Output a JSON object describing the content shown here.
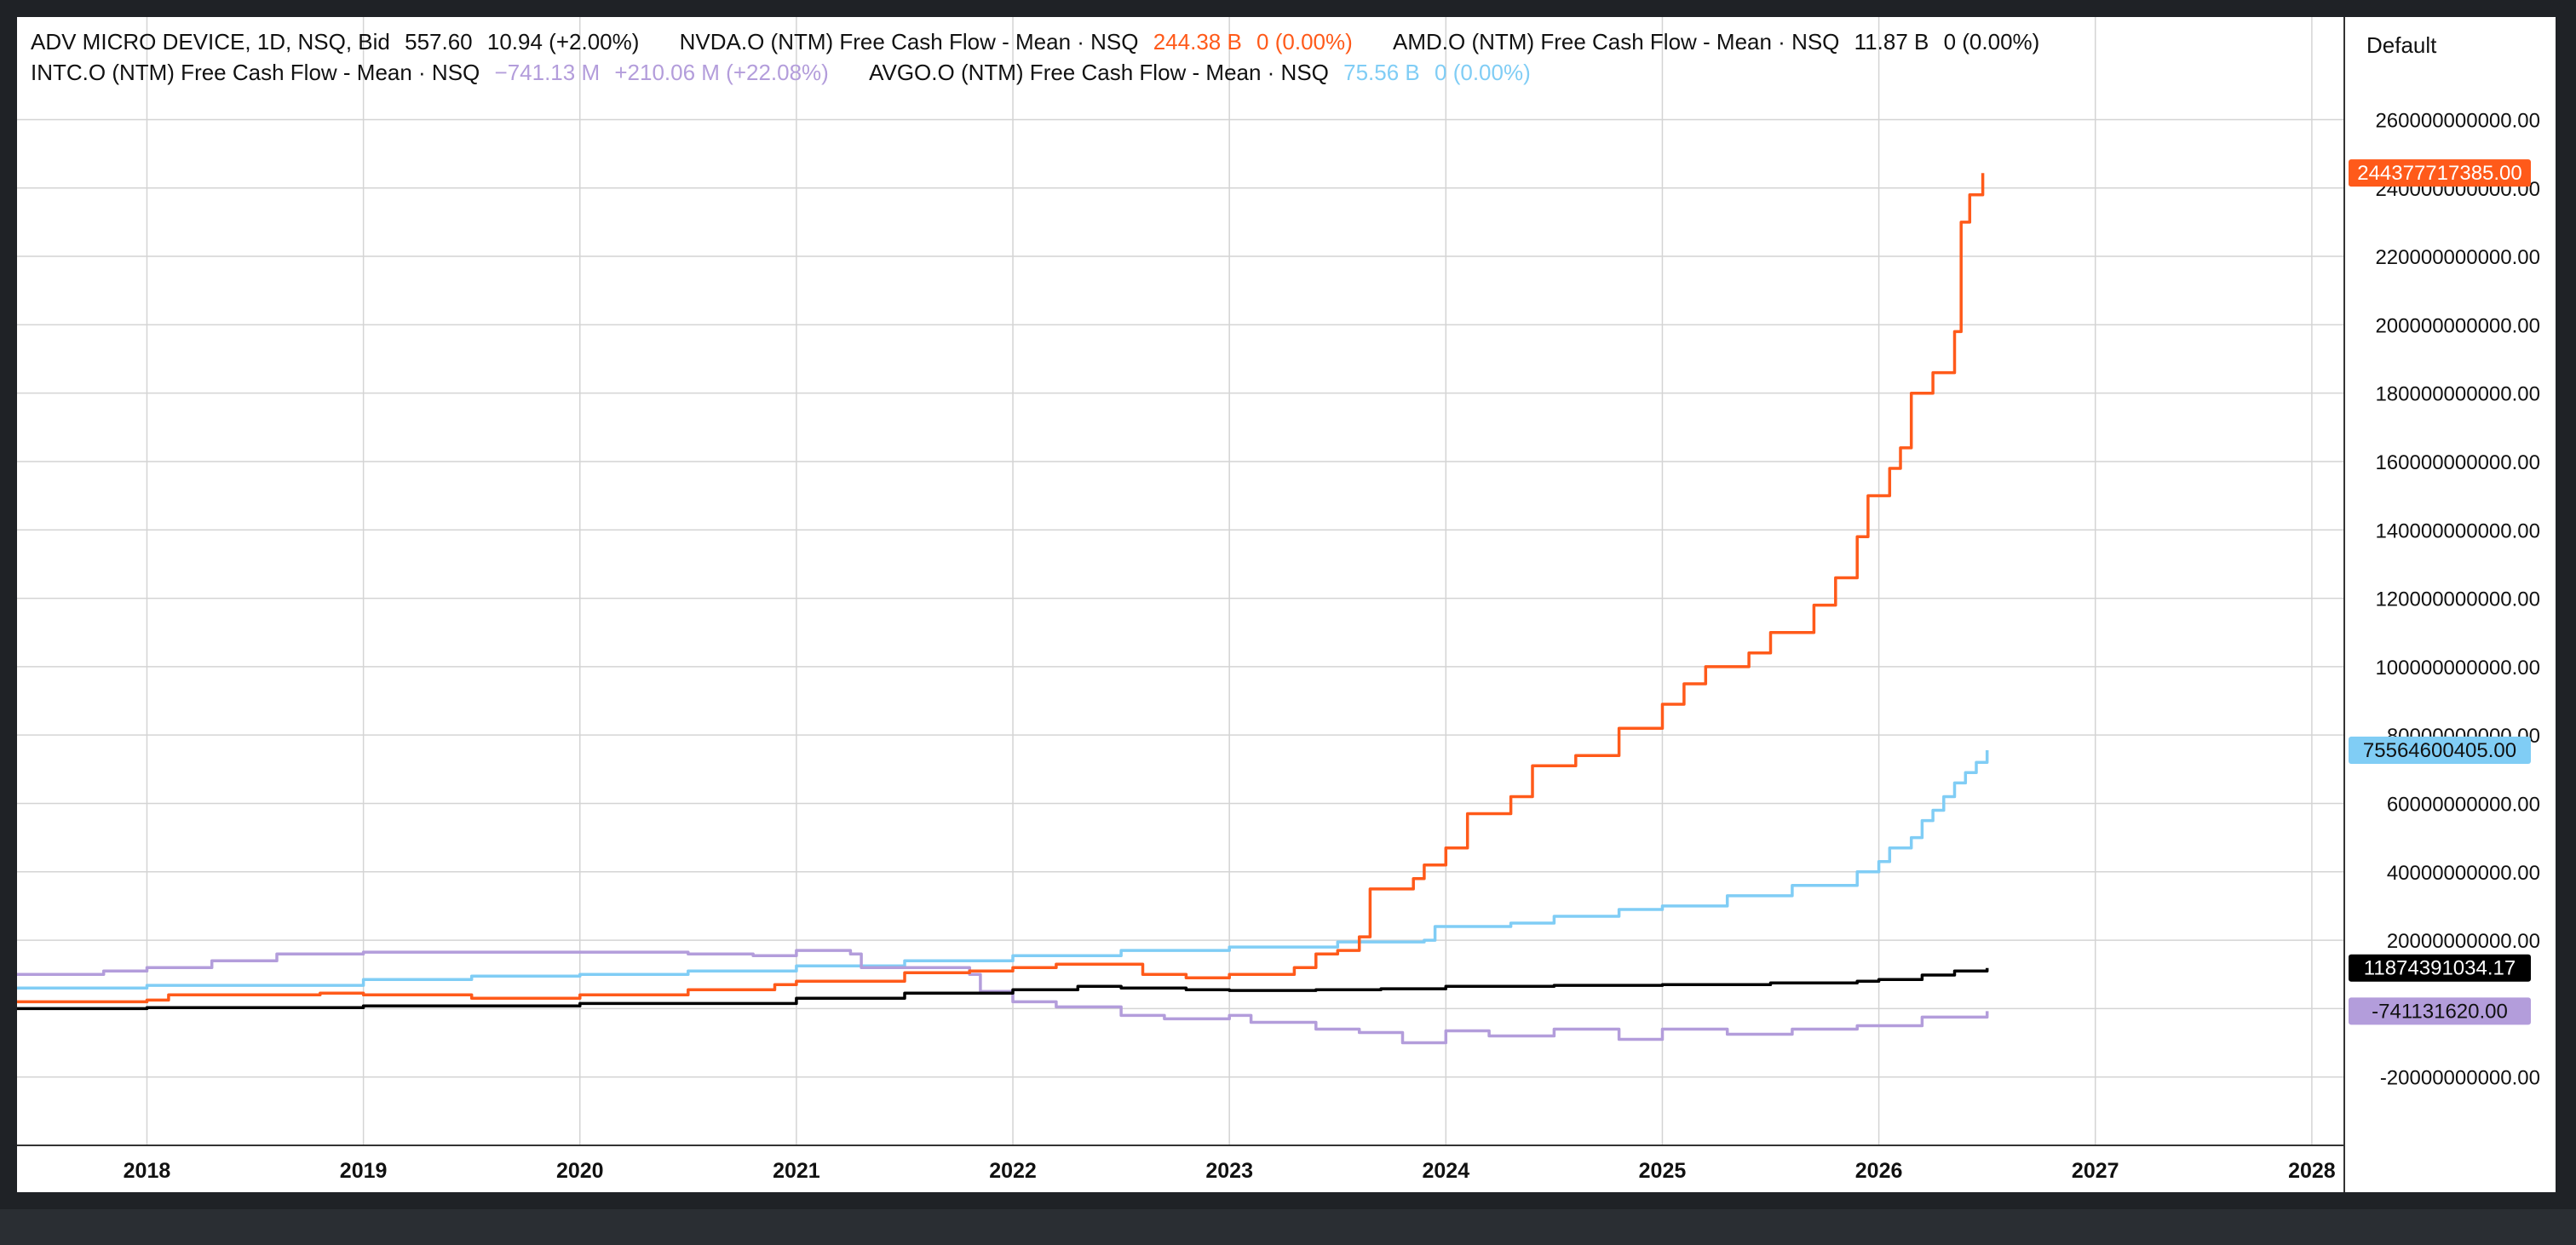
{
  "legend": {
    "main": {
      "label": "ADV MICRO DEVICE, 1D, NSQ, Bid",
      "price": "557.60",
      "change": "10.94 (+2.00%)",
      "color": "#111111"
    },
    "series_labels": [
      {
        "key": "nvda",
        "label": "NVDA.O (NTM) Free Cash Flow - Mean · NSQ",
        "value": "244.38 B",
        "change": "0 (0.00%)"
      },
      {
        "key": "amd",
        "label": "AMD.O (NTM) Free Cash Flow - Mean · NSQ",
        "value": "11.87 B",
        "change": "0 (0.00%)"
      },
      {
        "key": "intc",
        "label": "INTC.O (NTM) Free Cash Flow - Mean · NSQ",
        "value": "−741.13 M",
        "change": "+210.06 M (+22.08%)"
      },
      {
        "key": "avgo",
        "label": "AVGO.O (NTM) Free Cash Flow - Mean · NSQ",
        "value": "75.56 B",
        "change": "0 (0.00%)"
      }
    ]
  },
  "scale_mode": "Default",
  "chart_data": {
    "type": "line",
    "x_axis": {
      "ticks": [
        "2018",
        "2019",
        "2020",
        "2021",
        "2022",
        "2023",
        "2024",
        "2025",
        "2026",
        "2027",
        "2028"
      ],
      "range": [
        2017.4,
        2028.15
      ]
    },
    "y_axis": {
      "range": [
        -40000000000,
        290000000000
      ],
      "ticks": [
        -20000000000,
        0,
        20000000000,
        40000000000,
        60000000000,
        80000000000,
        100000000000,
        120000000000,
        140000000000,
        160000000000,
        180000000000,
        200000000000,
        220000000000,
        240000000000,
        260000000000
      ],
      "tick_labels": [
        "-20000000000.00",
        "",
        "20000000000.00",
        "40000000000.00",
        "60000000000.00",
        "80000000000.00",
        "100000000000.00",
        "120000000000.00",
        "140000000000.00",
        "160000000000.00",
        "180000000000.00",
        "200000000000.00",
        "220000000000.00",
        "240000000000.00",
        "260000000000.00"
      ],
      "position": "right"
    },
    "grid": true,
    "series": [
      {
        "key": "avgo",
        "color": "#80cdf5",
        "last_value": 75564600405,
        "badge": "75564600405.00",
        "badge_color": "#80cdf5",
        "badge_text_color": "#111111",
        "points": [
          [
            2017.4,
            6000000000
          ],
          [
            2018.0,
            6800000000
          ],
          [
            2019.0,
            8500000000
          ],
          [
            2019.5,
            9500000000
          ],
          [
            2020.0,
            10000000000
          ],
          [
            2020.5,
            11000000000
          ],
          [
            2021.0,
            12500000000
          ],
          [
            2021.5,
            14000000000
          ],
          [
            2022.0,
            15500000000
          ],
          [
            2022.5,
            17000000000
          ],
          [
            2023.0,
            18000000000
          ],
          [
            2023.5,
            19500000000
          ],
          [
            2023.7,
            19500000000
          ],
          [
            2023.9,
            20000000000
          ],
          [
            2023.95,
            24000000000
          ],
          [
            2024.3,
            25000000000
          ],
          [
            2024.5,
            27000000000
          ],
          [
            2024.8,
            29000000000
          ],
          [
            2025.0,
            30000000000
          ],
          [
            2025.3,
            33000000000
          ],
          [
            2025.6,
            36000000000
          ],
          [
            2025.9,
            40000000000
          ],
          [
            2026.0,
            43000000000
          ],
          [
            2026.05,
            47000000000
          ],
          [
            2026.15,
            50000000000
          ],
          [
            2026.2,
            55000000000
          ],
          [
            2026.25,
            58000000000
          ],
          [
            2026.3,
            62000000000
          ],
          [
            2026.35,
            66000000000
          ],
          [
            2026.4,
            69000000000
          ],
          [
            2026.45,
            72000000000
          ],
          [
            2026.5,
            75564600405
          ]
        ]
      },
      {
        "key": "intc",
        "color": "#b39ddb",
        "last_value": -741131620,
        "badge": "-741131620.00",
        "badge_color": "#b39ddb",
        "badge_text_color": "#111111",
        "points": [
          [
            2017.4,
            10000000000
          ],
          [
            2017.8,
            11000000000
          ],
          [
            2018.0,
            12000000000
          ],
          [
            2018.3,
            14000000000
          ],
          [
            2018.6,
            16000000000
          ],
          [
            2019.0,
            16500000000
          ],
          [
            2019.5,
            16500000000
          ],
          [
            2020.0,
            16500000000
          ],
          [
            2020.5,
            16000000000
          ],
          [
            2020.8,
            15500000000
          ],
          [
            2021.0,
            17000000000
          ],
          [
            2021.25,
            16000000000
          ],
          [
            2021.3,
            12000000000
          ],
          [
            2021.6,
            12000000000
          ],
          [
            2021.8,
            10000000000
          ],
          [
            2021.85,
            5000000000
          ],
          [
            2022.0,
            2000000000
          ],
          [
            2022.2,
            500000000
          ],
          [
            2022.5,
            -2000000000
          ],
          [
            2022.7,
            -3000000000
          ],
          [
            2023.0,
            -2000000000
          ],
          [
            2023.1,
            -4000000000
          ],
          [
            2023.3,
            -4000000000
          ],
          [
            2023.4,
            -6000000000
          ],
          [
            2023.6,
            -7000000000
          ],
          [
            2023.8,
            -10000000000
          ],
          [
            2024.0,
            -6500000000
          ],
          [
            2024.2,
            -8000000000
          ],
          [
            2024.5,
            -6000000000
          ],
          [
            2024.8,
            -9000000000
          ],
          [
            2025.0,
            -6000000000
          ],
          [
            2025.3,
            -7500000000
          ],
          [
            2025.6,
            -6000000000
          ],
          [
            2025.9,
            -5000000000
          ],
          [
            2026.2,
            -2500000000
          ],
          [
            2026.5,
            -741131620
          ]
        ]
      },
      {
        "key": "nvda",
        "color": "#ff5a1a",
        "last_value": 244377717385,
        "badge": "244377717385.00",
        "badge_color": "#ff5a1a",
        "badge_text_color": "#ffffff",
        "points": [
          [
            2017.4,
            2000000000
          ],
          [
            2018.0,
            2500000000
          ],
          [
            2018.1,
            4000000000
          ],
          [
            2018.8,
            4500000000
          ],
          [
            2019.0,
            4000000000
          ],
          [
            2019.5,
            3000000000
          ],
          [
            2020.0,
            4000000000
          ],
          [
            2020.5,
            5500000000
          ],
          [
            2020.9,
            7000000000
          ],
          [
            2021.0,
            8000000000
          ],
          [
            2021.5,
            10500000000
          ],
          [
            2021.8,
            11000000000
          ],
          [
            2022.0,
            12000000000
          ],
          [
            2022.2,
            13000000000
          ],
          [
            2022.5,
            13000000000
          ],
          [
            2022.6,
            10000000000
          ],
          [
            2022.8,
            9000000000
          ],
          [
            2023.0,
            10000000000
          ],
          [
            2023.3,
            12000000000
          ],
          [
            2023.4,
            16000000000
          ],
          [
            2023.5,
            17000000000
          ],
          [
            2023.6,
            21000000000
          ],
          [
            2023.65,
            35000000000
          ],
          [
            2023.85,
            38000000000
          ],
          [
            2023.9,
            42000000000
          ],
          [
            2024.0,
            47000000000
          ],
          [
            2024.1,
            57000000000
          ],
          [
            2024.3,
            62000000000
          ],
          [
            2024.4,
            71000000000
          ],
          [
            2024.6,
            74000000000
          ],
          [
            2024.8,
            82000000000
          ],
          [
            2025.0,
            89000000000
          ],
          [
            2025.1,
            95000000000
          ],
          [
            2025.2,
            100000000000
          ],
          [
            2025.4,
            104000000000
          ],
          [
            2025.5,
            110000000000
          ],
          [
            2025.7,
            118000000000
          ],
          [
            2025.8,
            126000000000
          ],
          [
            2025.9,
            138000000000
          ],
          [
            2025.95,
            150000000000
          ],
          [
            2026.05,
            158000000000
          ],
          [
            2026.1,
            164000000000
          ],
          [
            2026.15,
            180000000000
          ],
          [
            2026.25,
            186000000000
          ],
          [
            2026.35,
            198000000000
          ],
          [
            2026.38,
            230000000000
          ],
          [
            2026.42,
            238000000000
          ],
          [
            2026.48,
            244377717385
          ]
        ]
      },
      {
        "key": "amd",
        "color": "#000000",
        "last_value": 11874391034.17,
        "badge": "11874391034.17",
        "badge_color": "#000000",
        "badge_text_color": "#ffffff",
        "points": [
          [
            2017.4,
            0
          ],
          [
            2018.0,
            300000000
          ],
          [
            2019.0,
            800000000
          ],
          [
            2020.0,
            1500000000
          ],
          [
            2021.0,
            3000000000
          ],
          [
            2021.5,
            4500000000
          ],
          [
            2022.0,
            5500000000
          ],
          [
            2022.3,
            6500000000
          ],
          [
            2022.5,
            6000000000
          ],
          [
            2022.8,
            5500000000
          ],
          [
            2023.0,
            5300000000
          ],
          [
            2023.4,
            5500000000
          ],
          [
            2023.7,
            5800000000
          ],
          [
            2024.0,
            6500000000
          ],
          [
            2024.5,
            6800000000
          ],
          [
            2025.0,
            7000000000
          ],
          [
            2025.5,
            7500000000
          ],
          [
            2025.9,
            8000000000
          ],
          [
            2026.0,
            8500000000
          ],
          [
            2026.2,
            9800000000
          ],
          [
            2026.35,
            11000000000
          ],
          [
            2026.5,
            11874391034.17
          ]
        ]
      }
    ]
  }
}
